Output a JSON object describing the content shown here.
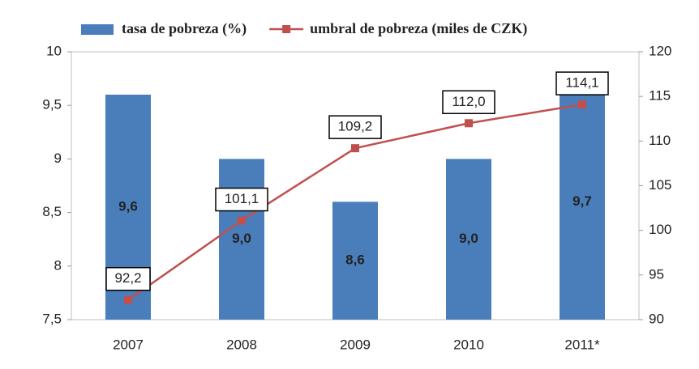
{
  "chart_data": {
    "type": "bar",
    "categories": [
      "2007",
      "2008",
      "2009",
      "2010",
      "2011*"
    ],
    "series": [
      {
        "name": "tasa de pobreza (%)",
        "type": "bar",
        "color": "#4a7ebb",
        "values": [
          9.6,
          9.0,
          8.6,
          9.0,
          9.7
        ],
        "value_labels": [
          "9,6",
          "9,0",
          "8,6",
          "9,0",
          "9,7"
        ]
      },
      {
        "name": "umbral de pobreza (miles de CZK)",
        "type": "line",
        "axis": "y2",
        "color": "#c0504d",
        "values": [
          92.2,
          101.1,
          109.2,
          112.0,
          114.1
        ],
        "value_labels": [
          "92,2",
          "101,1",
          "109,2",
          "112,0",
          "114,1"
        ]
      }
    ],
    "ylim": [
      7.5,
      10
    ],
    "yticks": [
      {
        "value": 7.5,
        "label": "7,5"
      },
      8,
      {
        "value": 8.5,
        "label": "8,5"
      },
      9,
      {
        "value": 9.5,
        "label": "9,5"
      },
      10
    ],
    "y2lim": [
      90,
      120
    ],
    "y2ticks": [
      90,
      95,
      100,
      105,
      110,
      115,
      120
    ],
    "grid": false,
    "legend": "top"
  }
}
